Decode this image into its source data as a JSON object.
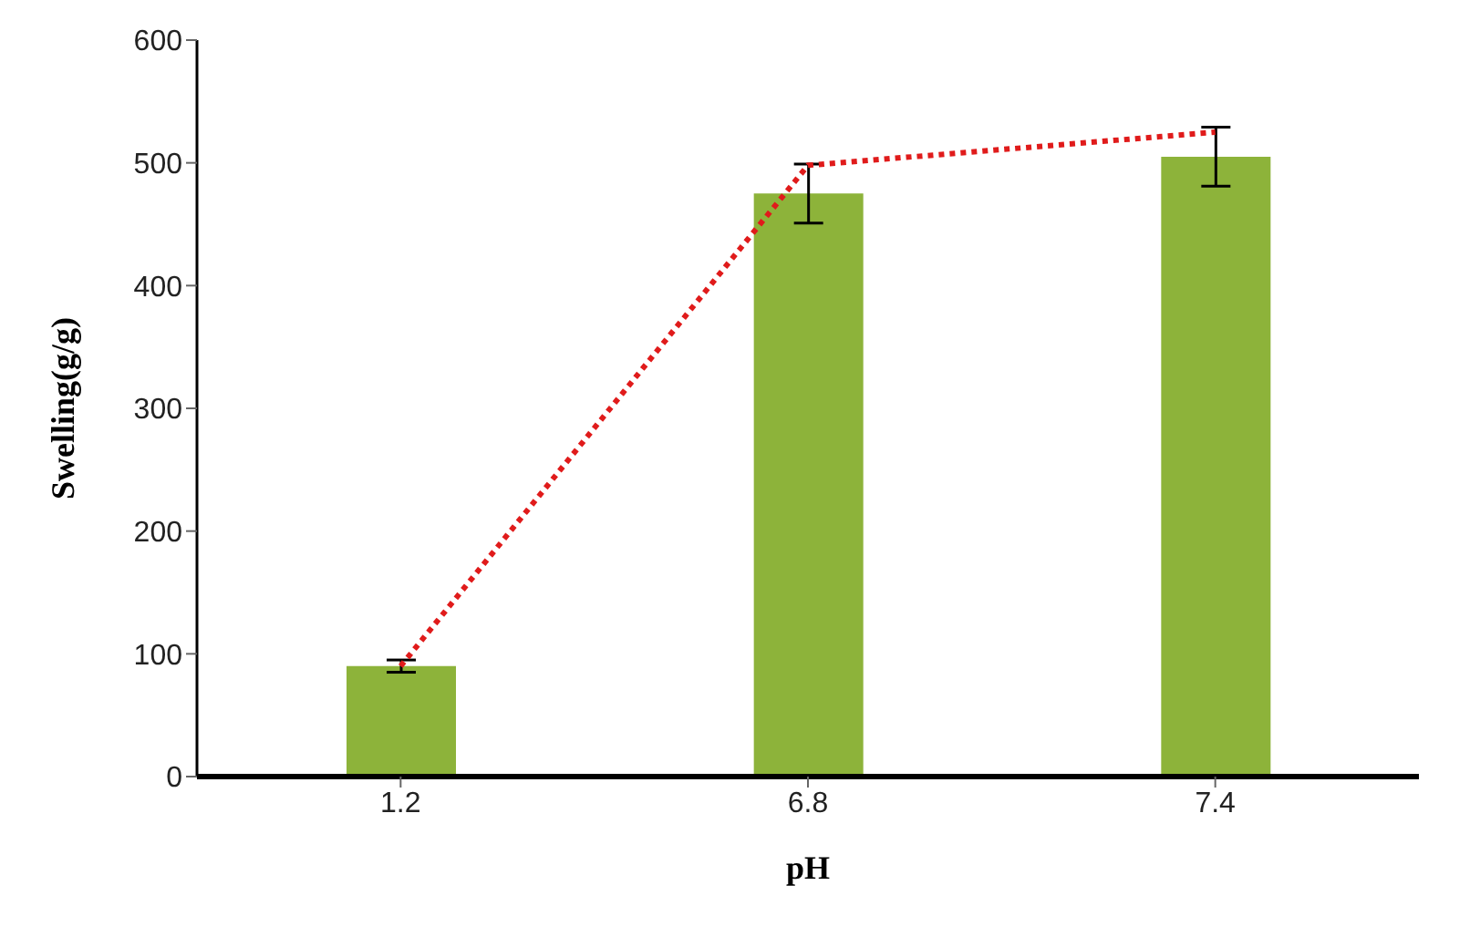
{
  "chart_data": {
    "type": "bar",
    "xlabel": "pH",
    "ylabel": "Swelling(g/g)",
    "categories": [
      "1.2",
      "6.8",
      "7.4"
    ],
    "series": [
      {
        "color": "#8db33a",
        "values": [
          90,
          475,
          505
        ],
        "errors": [
          5,
          24,
          24
        ]
      },
      {
        "type": "line",
        "color": "#e01b1b",
        "values": [
          90,
          498,
          525
        ],
        "line_style": "dotted",
        "marker": "none"
      }
    ],
    "ylim": [
      0,
      600
    ],
    "yticks": [
      0,
      100,
      200,
      300,
      400,
      500,
      600
    ],
    "grid": false,
    "legend": false
  }
}
